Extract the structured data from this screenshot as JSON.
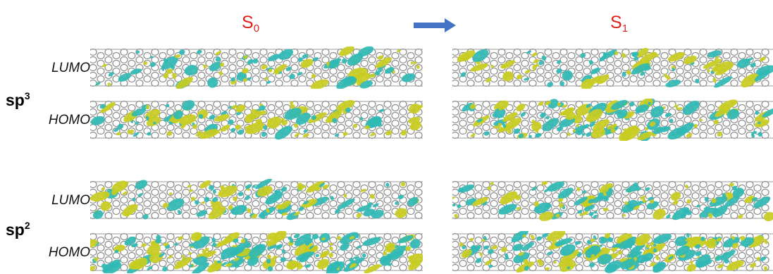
{
  "states": {
    "ground": {
      "base": "S",
      "sub": "0"
    },
    "excited": {
      "base": "S",
      "sub": "1"
    }
  },
  "arrow": {
    "color": "#4472c4"
  },
  "colors": {
    "lobe_yellow": "#c8cc1f",
    "lobe_cyan": "#2fb8b4",
    "lattice": "#8a8a8a",
    "text_red": "#e0201b"
  },
  "rows": [
    {
      "hybridization": {
        "base": "sp",
        "sup": "3"
      },
      "orbitals": [
        {
          "label": "LUMO"
        },
        {
          "label": "HOMO"
        }
      ]
    },
    {
      "hybridization": {
        "base": "sp",
        "sup": "2"
      },
      "orbitals": [
        {
          "label": "LUMO"
        },
        {
          "label": "HOMO"
        }
      ]
    }
  ]
}
